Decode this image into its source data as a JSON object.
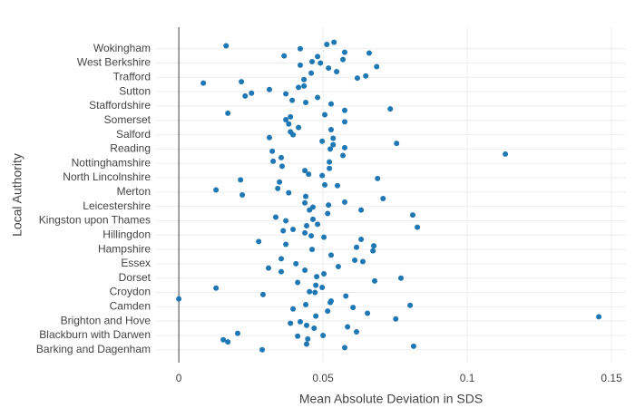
{
  "chart_data": {
    "type": "scatter",
    "x_label": "Mean Absolute Deviation in SDS",
    "y_label": "Local Authority",
    "categories": [
      "Barking and Dagenham",
      null,
      "Blackburn with Darwen",
      null,
      "Brighton and Hove",
      null,
      "Camden",
      null,
      "Croydon",
      null,
      "Dorset",
      null,
      "Essex",
      null,
      "Hampshire",
      null,
      "Hillingdon",
      null,
      "Kingston upon Thames",
      null,
      "Leicestershire",
      null,
      "Merton",
      null,
      "North Lincolnshire",
      null,
      "Nottinghamshire",
      null,
      "Reading",
      null,
      "Salford",
      null,
      "Somerset",
      null,
      "Staffordshire",
      null,
      "Sutton",
      null,
      "Trafford",
      null,
      "West Berkshire",
      null,
      "Wokingham"
    ],
    "series": [
      {
        "color": "#1f77b4",
        "x": [
          0.0164,
          0.0421,
          0.0513,
          0.0538,
          0.0575,
          0.066,
          0.0365,
          0.0481,
          0.0569,
          0.0421,
          0.0462,
          0.0491,
          0.0519,
          0.0686,
          0.0459,
          0.0547,
          0.0648,
          0.0619,
          0.0434,
          0.0085,
          0.0217,
          0.0434,
          0.0415,
          0.0314,
          0.0252,
          0.023,
          0.0371,
          0.0481,
          0.0393,
          0.044,
          0.0528,
          0.0575,
          0.0733,
          0.017,
          0.0506,
          0.0387,
          0.0371,
          0.0575,
          0.0381,
          0.0415,
          0.0528,
          0.0387,
          0.0396,
          0.0314,
          0.0497,
          0.0535,
          0.0755,
          0.0575,
          0.0535,
          0.0525,
          0.0324,
          0.0355,
          0.1132,
          0.0569,
          0.0327,
          0.0522,
          0.0358,
          0.0522,
          0.0437,
          0.045,
          0.0497,
          0.0689,
          0.0214,
          0.0349,
          0.0506,
          0.055,
          0.0343,
          0.0129,
          0.0381,
          0.022,
          0.044,
          0.0708,
          0.0575,
          0.0519,
          0.0437,
          0.0453,
          0.0465,
          0.0632,
          0.0516,
          0.0336,
          0.0811,
          0.0371,
          0.0465,
          0.0481,
          0.0443,
          0.0827,
          0.0362,
          0.0396,
          0.0437,
          0.0459,
          0.0503,
          0.0277,
          0.0632,
          0.0371,
          0.0462,
          0.0676,
          0.0616,
          0.0673,
          0.0528,
          0.0355,
          0.0406,
          0.061,
          0.0638,
          0.0553,
          0.0311,
          0.0355,
          0.0437,
          0.0503,
          0.0478,
          0.077,
          0.0679,
          0.0412,
          0.0475,
          0.0497,
          0.0129,
          0.0453,
          0.0292,
          0.0579,
          0.0472,
          0.0528,
          0.0525,
          0.044,
          0.0802,
          0.0604,
          0.0396,
          0.0516,
          0.0654,
          0.0475,
          0.0752,
          0.1456,
          0.0387,
          0.0421,
          0.0443,
          0.0469,
          0.0585,
          0.0616,
          0.0204,
          0.0412,
          0.05,
          0.0154,
          0.017,
          0.0447,
          0.0443,
          0.0814,
          0.0289,
          0.0575,
          0
        ],
        "y": [
          42.4,
          42.0,
          42.6,
          42.9,
          41.5,
          41.4,
          41.0,
          40.9,
          40.5,
          39.7,
          40.2,
          40.0,
          39.3,
          39.5,
          38.6,
          38.8,
          38.2,
          37.9,
          37.7,
          37.2,
          37.4,
          36.8,
          36.6,
          36.3,
          35.8,
          35.4,
          35.7,
          35.2,
          34.8,
          34.5,
          34.3,
          33.4,
          33.6,
          33.0,
          32.8,
          32.5,
          32.1,
          31.8,
          31.5,
          31.0,
          30.7,
          30.4,
          30.0,
          29.6,
          29.1,
          29.5,
          28.8,
          28.2,
          28.6,
          28.0,
          27.7,
          26.8,
          27.3,
          27.1,
          26.3,
          26.2,
          25.6,
          25.3,
          25.0,
          24.5,
          24.3,
          23.9,
          23.7,
          23.4,
          23.0,
          22.9,
          22.5,
          22.3,
          21.9,
          21.6,
          21.4,
          21.1,
          20.6,
          20.2,
          20.5,
          19.5,
          19.9,
          19.5,
          19.0,
          18.5,
          18.8,
          18.0,
          18.2,
          17.5,
          17.3,
          17.1,
          16.6,
          16.8,
          16.3,
          15.9,
          15.7,
          15.1,
          15.4,
          14.7,
          14.0,
          14.5,
          14.3,
          13.8,
          13.2,
          12.7,
          12.0,
          12.5,
          12.3,
          11.6,
          11.4,
          10.9,
          11.1,
          10.6,
          10.2,
          10.0,
          9.6,
          9.4,
          9.0,
          8.7,
          8.6,
          8.1,
          7.7,
          7.5,
          8.0,
          6.8,
          6.6,
          6.3,
          6.2,
          5.9,
          5.7,
          5.4,
          5.1,
          4.7,
          4.3,
          4.6,
          3.7,
          3.9,
          3.4,
          3.0,
          3.2,
          2.5,
          2.3,
          1.9,
          2.0,
          1.4,
          1.1,
          1.5,
          0.8,
          0.5,
          0,
          0.3,
          7.1
        ]
      }
    ],
    "xlim": [
      -0.0079,
      0.155
    ],
    "ylim": [
      -1.8,
      45
    ],
    "xticks": [
      0,
      0.05,
      0.1,
      0.15
    ],
    "grid": true
  }
}
